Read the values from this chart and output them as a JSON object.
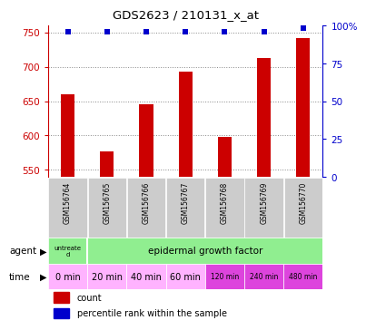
{
  "title": "GDS2623 / 210131_x_at",
  "samples": [
    "GSM156764",
    "GSM156765",
    "GSM156766",
    "GSM156767",
    "GSM156768",
    "GSM156769",
    "GSM156770"
  ],
  "counts": [
    660,
    577,
    645,
    693,
    598,
    713,
    742
  ],
  "percentile_ranks": [
    96,
    96,
    96,
    96,
    96,
    96,
    98
  ],
  "ylim_left": [
    540,
    760
  ],
  "yticks_left": [
    550,
    600,
    650,
    700,
    750
  ],
  "yticks_right": [
    0,
    25,
    50,
    75,
    100
  ],
  "bar_color": "#cc0000",
  "dot_color": "#0000cc",
  "bar_width": 0.35,
  "time_labels": [
    "0 min",
    "20 min",
    "40 min",
    "60 min",
    "120 min",
    "240 min",
    "480 min"
  ],
  "time_colors": [
    "#ffb3ff",
    "#ffb3ff",
    "#ffb3ff",
    "#ffb3ff",
    "#dd44dd",
    "#dd44dd",
    "#dd44dd"
  ],
  "time_fontsizes": [
    7,
    7,
    7,
    7,
    5.5,
    5.5,
    5.5
  ],
  "agent_colors": [
    "#90ee90",
    "#90ee90"
  ],
  "sample_bg_color": "#cccccc",
  "legend_count_color": "#cc0000",
  "legend_pct_color": "#0000cc",
  "grid_color": "#888888"
}
